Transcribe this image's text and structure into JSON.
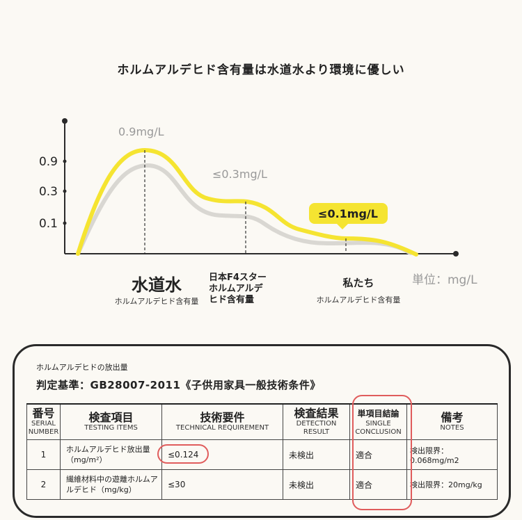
{
  "title": "ホルムアルデヒド含有量は水道水より環境に優しい",
  "chart_data": {
    "type": "line",
    "unit_label": "単位：mg/L",
    "yticks": [
      "0.9",
      "0.3",
      "0.1"
    ],
    "points": [
      {
        "name": "水道水",
        "sub": "ホルムアルデヒド含有量",
        "value": 0.9,
        "label": "0.9mg/L"
      },
      {
        "name": "日本F4スターホルムアルデヒド含有量",
        "sub": "",
        "value": 0.3,
        "label": "≤0.3mg/L"
      },
      {
        "name": "私たち",
        "sub": "ホルムアルデヒド含有量",
        "value": 0.1,
        "label": "≤0.1mg/L"
      }
    ],
    "categories": {
      "c1_main": "水道水",
      "c1_sub": "ホルムアルデヒド含有量",
      "c2_line1": "日本F4スター",
      "c2_line2": "ホルムアルデ",
      "c2_line3": "ヒド含有量",
      "c3_main": "私たち",
      "c3_sub": "ホルムアルデヒド含有量"
    },
    "colors": {
      "highlight": "#f5e431",
      "shadow": "#d9d7d2",
      "axis": "#2a2a2a"
    }
  },
  "panel": {
    "subtitle": "ホルムアルデヒドの放出量",
    "standard": "判定基準：GB28007-2011《子供用家具一般技術条件》",
    "headers": [
      {
        "ja": "番号",
        "en": "SERIAL NUMBER"
      },
      {
        "ja": "検査項目",
        "en": "TESTING ITEMS"
      },
      {
        "ja": "技術要件",
        "en": "TECHNICAL REQUIREMENT"
      },
      {
        "ja": "検査結果",
        "en": "DETECTION RESULT"
      },
      {
        "ja": "単項目結論",
        "en": "SINGLE CONCLUSION"
      },
      {
        "ja": "備考",
        "en": "NOTES"
      }
    ],
    "rows": [
      {
        "no": "1",
        "item": "ホルムアルデヒド放出量（mg/m²）",
        "req": "≤0.124",
        "result": "未検出",
        "conclusion": "適合",
        "note": "検出限界：0.068mg/m2"
      },
      {
        "no": "2",
        "item": "繊維材料中の遊離ホルムアルデヒド（mg/kg）",
        "req": "≤30",
        "result": "未検出",
        "conclusion": "適合",
        "note": "検出限界：20mg/kg"
      }
    ]
  }
}
